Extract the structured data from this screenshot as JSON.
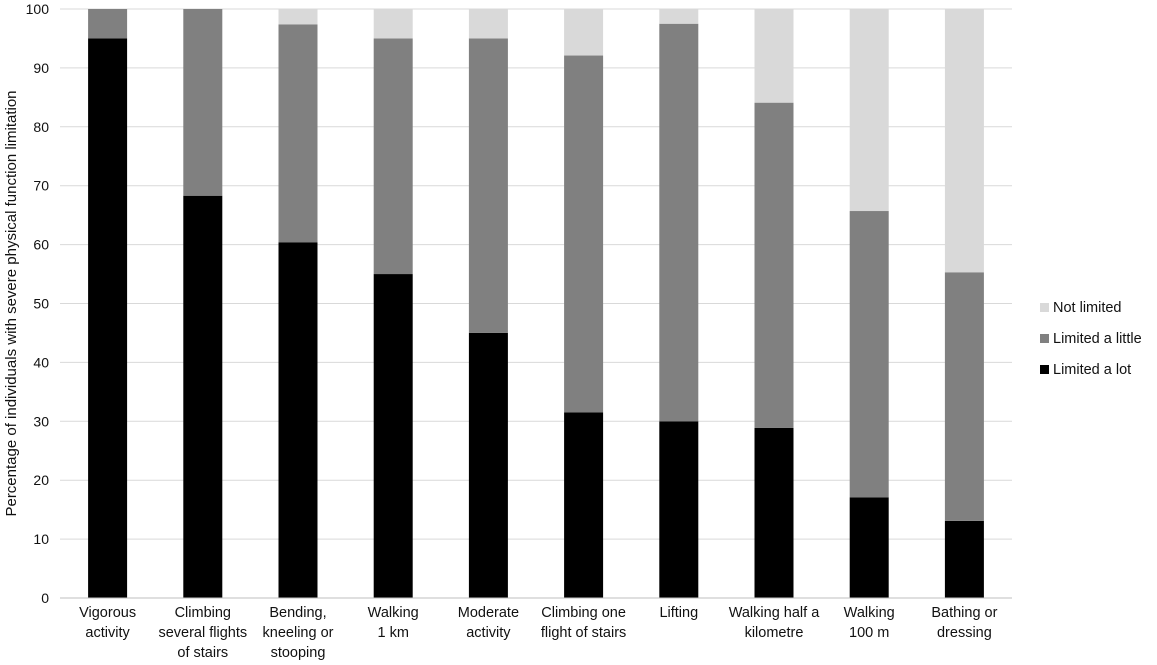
{
  "chart_data": {
    "type": "bar",
    "stacked": true,
    "title": "",
    "xlabel": "",
    "ylabel": "Percentage of individuals with severe physical function limitation",
    "ylim": [
      0,
      100
    ],
    "yticks": [
      0,
      10,
      20,
      30,
      40,
      50,
      60,
      70,
      80,
      90,
      100
    ],
    "grid": true,
    "legend_position": "right",
    "categories": [
      [
        "Vigorous",
        "activity"
      ],
      [
        "Climbing",
        "several flights",
        "of stairs"
      ],
      [
        "Bending,",
        "kneeling or",
        "stooping"
      ],
      [
        "Walking",
        "1 km"
      ],
      [
        "Moderate",
        "activity"
      ],
      [
        "Climbing one",
        "flight of stairs"
      ],
      [
        "Lifting"
      ],
      [
        "Walking half a",
        "kilometre"
      ],
      [
        "Walking",
        "100 m"
      ],
      [
        "Bathing or",
        "dressing"
      ]
    ],
    "series": [
      {
        "name": "Limited a lot",
        "color": "#000000",
        "values": [
          95,
          68.3,
          60.4,
          55,
          45,
          31.5,
          30,
          28.9,
          17.1,
          13.1
        ]
      },
      {
        "name": "Limited a little",
        "color": "#808080",
        "values": [
          5,
          31.7,
          37,
          40,
          50,
          60.6,
          67.5,
          55.2,
          48.6,
          42.2
        ]
      },
      {
        "name": "Not limited",
        "color": "#d9d9d9",
        "values": [
          0,
          0,
          2.6,
          5,
          5,
          7.9,
          2.5,
          15.9,
          34.3,
          44.7
        ]
      }
    ],
    "legend_order": [
      "Not limited",
      "Limited a little",
      "Limited a lot"
    ]
  }
}
